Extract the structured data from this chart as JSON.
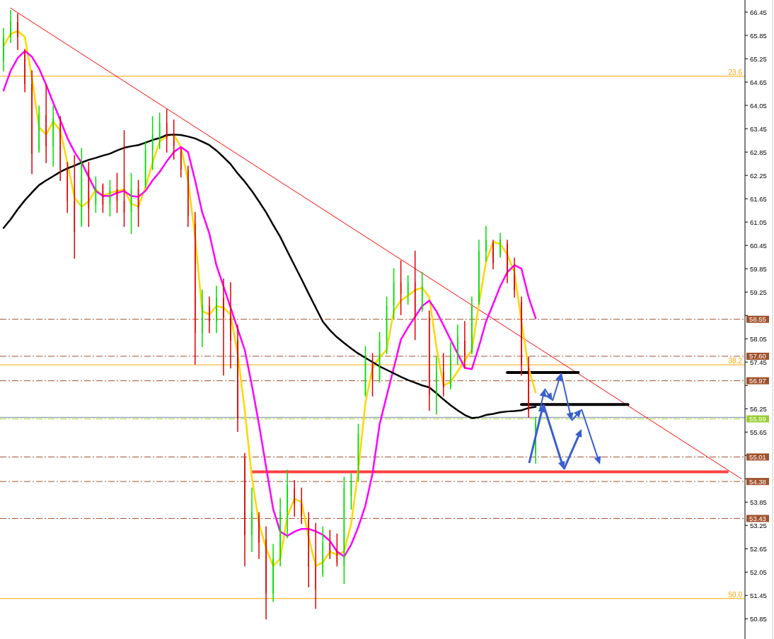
{
  "chart_data": {
    "type": "candlestick",
    "tick_labels": "y",
    "grid": false,
    "categories": [
      null,
      null,
      null,
      null,
      null,
      null,
      null,
      null,
      null,
      null,
      null,
      null,
      null,
      null,
      null,
      null,
      null,
      null,
      null,
      null,
      null,
      null,
      null,
      null,
      null,
      null,
      null,
      null,
      null,
      null,
      null,
      null,
      null,
      null,
      null,
      null,
      null,
      null,
      null,
      null,
      null,
      null,
      null,
      null,
      null,
      null,
      null,
      null,
      null,
      null,
      null,
      null,
      null,
      null,
      null,
      null,
      null,
      null,
      null,
      null,
      null,
      null,
      null,
      null,
      null,
      null,
      null,
      null,
      null,
      null,
      null,
      null,
      null,
      null,
      null,
      null,
      null,
      null,
      null,
      null,
      null,
      null,
      null,
      null,
      null,
      null,
      null,
      null,
      null,
      null,
      null,
      null,
      null,
      null,
      null,
      null,
      null,
      null,
      null,
      null,
      null,
      null,
      null,
      null,
      null
    ],
    "ylim": [
      50.33,
      66.76
    ],
    "yticks": [
      66.45,
      65.85,
      65.25,
      64.65,
      64.05,
      63.45,
      62.85,
      62.25,
      61.65,
      61.05,
      60.45,
      59.85,
      59.25,
      {
        "value": 58.65,
        "label": null
      },
      58.05,
      57.45,
      {
        "value": 56.85,
        "label": null
      },
      56.25,
      55.65,
      {
        "value": 55.05,
        "label": null
      },
      {
        "value": 54.45,
        "label": null
      },
      53.85,
      53.25,
      52.65,
      52.05,
      51.45,
      50.85
    ],
    "annotations": [
      {
        "text": "23.6",
        "y": 64.8
      },
      {
        "text": "38.2",
        "y": 57.38
      },
      {
        "text": "50.0",
        "y": 51.37
      }
    ],
    "ohlc": [
      [
        65.2,
        66.03,
        64.94,
        65.8
      ],
      [
        65.8,
        66.49,
        65.67,
        66.2
      ],
      [
        66.2,
        66.4,
        65.49,
        65.8
      ],
      [
        65.4,
        65.49,
        64.4,
        64.6
      ],
      [
        64.6,
        64.94,
        62.3,
        62.8
      ],
      [
        62.9,
        64.03,
        62.85,
        63.8
      ],
      [
        63.8,
        64.58,
        62.58,
        63.0
      ],
      [
        63.0,
        64.03,
        62.49,
        63.7
      ],
      [
        63.6,
        63.76,
        62.12,
        62.4
      ],
      [
        62.4,
        62.58,
        61.3,
        61.6
      ],
      [
        61.6,
        62.76,
        60.12,
        60.8
      ],
      [
        61.0,
        62.94,
        60.94,
        62.6
      ],
      [
        62.4,
        62.58,
        60.94,
        61.4
      ],
      [
        61.5,
        62.21,
        61.3,
        62.0
      ],
      [
        62.0,
        62.03,
        61.3,
        61.5
      ],
      [
        61.5,
        62.12,
        61.21,
        61.9
      ],
      [
        61.9,
        62.3,
        61.3,
        61.6
      ],
      [
        61.6,
        63.4,
        60.94,
        61.3
      ],
      [
        61.3,
        62.3,
        60.76,
        61.9
      ],
      [
        61.9,
        62.12,
        60.94,
        61.4
      ],
      [
        62.0,
        63.12,
        61.94,
        62.9
      ],
      [
        62.9,
        63.76,
        62.4,
        63.3
      ],
      [
        63.2,
        63.85,
        62.94,
        63.6
      ],
      [
        63.6,
        63.94,
        62.85,
        63.2
      ],
      [
        63.2,
        63.67,
        62.67,
        63.0
      ],
      [
        62.9,
        62.94,
        62.21,
        62.4
      ],
      [
        62.4,
        62.49,
        60.94,
        61.2
      ],
      [
        61.0,
        61.3,
        57.4,
        58.2
      ],
      [
        58.2,
        59.3,
        57.85,
        58.9
      ],
      [
        58.9,
        59.12,
        58.21,
        58.5
      ],
      [
        58.5,
        59.4,
        58.21,
        59.1
      ],
      [
        59.1,
        59.58,
        57.12,
        58.6
      ],
      [
        58.6,
        59.49,
        57.3,
        58.0
      ],
      [
        58.0,
        58.4,
        55.67,
        56.0
      ],
      [
        55.0,
        55.1,
        52.21,
        53.0
      ],
      [
        53.0,
        54.21,
        52.58,
        53.6
      ],
      [
        53.5,
        53.58,
        52.4,
        52.8
      ],
      [
        52.9,
        53.21,
        50.85,
        51.5
      ],
      [
        51.5,
        52.76,
        51.3,
        52.4
      ],
      [
        52.4,
        53.94,
        52.21,
        53.6
      ],
      [
        53.6,
        54.67,
        52.94,
        54.3
      ],
      [
        54.2,
        54.4,
        53.49,
        53.8
      ],
      [
        53.8,
        54.21,
        53.3,
        53.5
      ],
      [
        53.4,
        53.58,
        51.67,
        52.2
      ],
      [
        52.2,
        53.3,
        51.12,
        51.6
      ],
      [
        52.0,
        53.21,
        51.94,
        52.8
      ],
      [
        52.8,
        53.12,
        52.4,
        52.6
      ],
      [
        52.6,
        53.03,
        52.21,
        52.3
      ],
      [
        52.2,
        54.49,
        51.76,
        54.2
      ],
      [
        54.0,
        54.58,
        53.67,
        54.4
      ],
      [
        54.8,
        55.85,
        54.4,
        55.6
      ],
      [
        56.6,
        57.85,
        56.58,
        57.5
      ],
      [
        57.4,
        57.67,
        56.58,
        57.0
      ],
      [
        57.0,
        58.21,
        56.94,
        58.0
      ],
      [
        58.0,
        59.12,
        57.67,
        58.9
      ],
      [
        58.9,
        59.85,
        58.58,
        59.5
      ],
      [
        59.5,
        60.05,
        58.67,
        59.2
      ],
      [
        59.2,
        59.67,
        58.94,
        59.5
      ],
      [
        59.5,
        60.3,
        58.03,
        58.6
      ],
      [
        58.8,
        59.76,
        58.76,
        59.4
      ],
      [
        58.6,
        58.76,
        56.21,
        56.6
      ],
      [
        56.6,
        57.58,
        56.12,
        57.2
      ],
      [
        57.2,
        57.67,
        56.58,
        56.8
      ],
      [
        56.8,
        57.94,
        56.76,
        57.6
      ],
      [
        57.6,
        58.4,
        57.4,
        58.1
      ],
      [
        58.0,
        58.49,
        57.3,
        57.6
      ],
      [
        57.7,
        59.12,
        57.67,
        58.9
      ],
      [
        59.0,
        60.58,
        58.94,
        60.3
      ],
      [
        60.3,
        60.94,
        60.05,
        60.6
      ],
      [
        60.5,
        60.58,
        59.85,
        60.0
      ],
      [
        60.2,
        60.76,
        60.15,
        60.6
      ],
      [
        60.5,
        60.58,
        59.49,
        59.7
      ],
      [
        59.7,
        60.12,
        59.12,
        59.3
      ],
      [
        59.0,
        59.12,
        57.12,
        57.4
      ],
      [
        57.3,
        57.58,
        56.03,
        56.2
      ],
      [
        55.1,
        56.03,
        54.85,
        55.9
      ],
      null,
      null,
      null,
      null,
      null,
      null,
      null,
      null,
      null,
      null,
      null,
      null,
      null,
      null,
      null,
      null,
      null,
      null,
      null,
      null,
      null,
      null,
      null,
      null,
      null,
      null,
      null,
      null,
      null
    ],
    "series": [
      {
        "type": "line",
        "color": "#ffd700",
        "values": [
          65.58,
          65.89,
          65.96,
          65.81,
          64.76,
          63.49,
          63.3,
          63.63,
          63.4,
          62.58,
          61.67,
          61.45,
          61.58,
          61.89,
          61.72,
          61.8,
          61.85,
          61.89,
          61.52,
          61.45,
          61.94,
          62.58,
          63.12,
          63.27,
          63.3,
          62.98,
          62.12,
          60.67,
          58.76,
          58.67,
          58.89,
          58.85,
          58.67,
          57.67,
          56.21,
          54.49,
          53.3,
          52.67,
          52.21,
          52.4,
          53.49,
          53.94,
          53.85,
          52.94,
          52.21,
          52.3,
          52.58,
          52.49,
          52.58,
          53.3,
          54.67,
          56.4,
          57.3,
          57.58,
          57.76,
          58.76,
          59.03,
          59.16,
          59.3,
          59.36,
          59.12,
          57.85,
          56.85,
          56.94,
          57.21,
          57.49,
          57.76,
          58.94,
          60.03,
          60.54,
          60.49,
          60.21,
          59.76,
          58.49,
          57.3,
          56.67,
          null,
          null,
          null,
          null,
          null,
          null,
          null,
          null,
          null,
          null,
          null,
          null,
          null,
          null,
          null,
          null,
          null,
          null,
          null,
          null,
          null,
          null,
          null,
          null,
          null,
          null,
          null,
          null,
          null
        ]
      },
      {
        "type": "line",
        "color": "#ff00ff",
        "values": [
          64.43,
          64.94,
          65.27,
          65.45,
          65.3,
          65.0,
          64.58,
          64.12,
          63.67,
          63.21,
          62.85,
          62.58,
          62.21,
          61.85,
          61.72,
          61.72,
          61.8,
          61.85,
          61.72,
          61.7,
          61.85,
          62.12,
          62.34,
          62.61,
          62.85,
          62.98,
          62.85,
          62.12,
          61.3,
          60.76,
          59.94,
          59.4,
          58.85,
          58.3,
          57.76,
          56.85,
          55.85,
          54.76,
          53.67,
          53.09,
          52.98,
          53.09,
          53.16,
          53.16,
          53.1,
          53.01,
          52.85,
          52.58,
          52.45,
          52.76,
          53.21,
          53.76,
          54.58,
          55.85,
          56.58,
          57.3,
          58.03,
          58.34,
          58.61,
          58.89,
          59.03,
          58.76,
          58.4,
          58.03,
          57.67,
          57.3,
          57.27,
          57.85,
          58.49,
          58.94,
          59.4,
          59.76,
          59.94,
          59.85,
          59.12,
          58.58,
          null,
          null,
          null,
          null,
          null,
          null,
          null,
          null,
          null,
          null,
          null,
          null,
          null,
          null,
          null,
          null,
          null,
          null,
          null,
          null,
          null,
          null,
          null,
          null,
          null,
          null,
          null,
          null,
          null
        ]
      },
      {
        "type": "line",
        "color": "#000000",
        "values": [
          60.9,
          61.12,
          61.38,
          61.61,
          61.81,
          62.0,
          62.12,
          62.23,
          62.34,
          62.43,
          62.5,
          62.58,
          62.65,
          62.7,
          62.76,
          62.81,
          62.89,
          62.96,
          63.0,
          63.03,
          63.09,
          63.16,
          63.21,
          63.29,
          63.3,
          63.29,
          63.25,
          63.2,
          63.12,
          63.03,
          62.89,
          62.72,
          62.54,
          62.3,
          62.09,
          61.85,
          61.58,
          61.3,
          60.98,
          60.67,
          60.3,
          59.94,
          59.58,
          59.21,
          58.85,
          58.49,
          58.27,
          58.09,
          57.94,
          57.8,
          57.67,
          57.56,
          57.45,
          57.34,
          57.25,
          57.16,
          57.07,
          56.99,
          56.92,
          56.85,
          56.8,
          56.65,
          56.49,
          56.34,
          56.21,
          56.09,
          56.01,
          56.03,
          56.09,
          56.12,
          56.16,
          56.18,
          56.19,
          56.21,
          56.27,
          56.3,
          null,
          null,
          null,
          null,
          null,
          null,
          null,
          null,
          null,
          null,
          null,
          null,
          null,
          null,
          null,
          null,
          null,
          null,
          null,
          null,
          null,
          null,
          null,
          null,
          null,
          null,
          null,
          null,
          null
        ]
      },
      {
        "type": "line",
        "color": "#ff0000",
        "values": [
          null,
          66.55,
          null,
          null,
          null,
          null,
          null,
          null,
          null,
          null,
          null,
          null,
          null,
          null,
          null,
          null,
          null,
          null,
          null,
          null,
          null,
          null,
          null,
          null,
          null,
          null,
          null,
          null,
          null,
          null,
          null,
          null,
          null,
          null,
          null,
          null,
          null,
          null,
          null,
          null,
          null,
          null,
          null,
          null,
          null,
          null,
          null,
          null,
          null,
          null,
          null,
          null,
          null,
          null,
          null,
          null,
          null,
          null,
          null,
          null,
          null,
          null,
          null,
          null,
          null,
          null,
          null,
          null,
          null,
          null,
          null,
          null,
          null,
          null,
          null,
          null,
          null,
          null,
          null,
          null,
          null,
          null,
          null,
          null,
          null,
          null,
          null,
          null,
          null,
          null,
          null,
          null,
          null,
          null,
          null,
          null,
          null,
          null,
          null,
          null,
          null,
          null,
          null,
          null,
          54.45
        ]
      },
      {
        "type": "line",
        "color": "#ff4040",
        "values": [
          null,
          null,
          null,
          null,
          null,
          null,
          null,
          null,
          null,
          null,
          null,
          null,
          null,
          null,
          null,
          null,
          null,
          null,
          null,
          null,
          null,
          null,
          null,
          null,
          null,
          null,
          null,
          null,
          null,
          null,
          null,
          null,
          null,
          null,
          null,
          54.63,
          null,
          null,
          null,
          null,
          null,
          null,
          null,
          null,
          null,
          null,
          null,
          null,
          null,
          null,
          null,
          null,
          null,
          null,
          null,
          null,
          null,
          null,
          null,
          null,
          null,
          null,
          null,
          null,
          null,
          null,
          null,
          null,
          null,
          null,
          null,
          null,
          null,
          null,
          null,
          null,
          null,
          null,
          null,
          null,
          null,
          null,
          null,
          null,
          null,
          null,
          null,
          null,
          null,
          null,
          null,
          null,
          null,
          null,
          null,
          null,
          null,
          null,
          null,
          null,
          null,
          null,
          54.63,
          null,
          null
        ]
      },
      {
        "type": "line",
        "color": "#000000",
        "values": [
          null,
          null,
          null,
          null,
          null,
          null,
          null,
          null,
          null,
          null,
          null,
          null,
          null,
          null,
          null,
          null,
          null,
          null,
          null,
          null,
          null,
          null,
          null,
          null,
          null,
          null,
          null,
          null,
          null,
          null,
          null,
          null,
          null,
          null,
          null,
          null,
          null,
          null,
          null,
          null,
          null,
          null,
          null,
          null,
          null,
          null,
          null,
          null,
          null,
          null,
          null,
          null,
          null,
          null,
          null,
          null,
          null,
          null,
          null,
          null,
          null,
          null,
          null,
          null,
          null,
          null,
          null,
          null,
          null,
          null,
          null,
          57.18,
          null,
          null,
          null,
          null,
          null,
          null,
          null,
          null,
          null,
          57.18,
          null,
          null,
          null,
          null,
          null,
          null,
          null,
          null,
          null,
          null,
          null,
          null,
          null,
          null,
          null,
          null,
          null,
          null,
          null,
          null,
          null,
          null,
          null
        ]
      },
      {
        "type": "line",
        "color": "#000000",
        "values": [
          null,
          null,
          null,
          null,
          null,
          null,
          null,
          null,
          null,
          null,
          null,
          null,
          null,
          null,
          null,
          null,
          null,
          null,
          null,
          null,
          null,
          null,
          null,
          null,
          null,
          null,
          null,
          null,
          null,
          null,
          null,
          null,
          null,
          null,
          null,
          null,
          null,
          null,
          null,
          null,
          null,
          null,
          null,
          null,
          null,
          null,
          null,
          null,
          null,
          null,
          null,
          null,
          null,
          null,
          null,
          null,
          null,
          null,
          null,
          null,
          null,
          null,
          null,
          null,
          null,
          null,
          null,
          null,
          null,
          null,
          null,
          null,
          null,
          56.36,
          null,
          null,
          null,
          null,
          null,
          null,
          null,
          null,
          null,
          null,
          null,
          null,
          null,
          null,
          56.36,
          null,
          null,
          null,
          null,
          null,
          null,
          null,
          null,
          null,
          null,
          null,
          null,
          null,
          null,
          null,
          null
        ]
      }
    ],
    "ref_lines": [
      {
        "axis": "y",
        "value": 64.8,
        "color": "#ffa500",
        "line_style": "solid"
      },
      {
        "axis": "y",
        "value": 57.38,
        "color": "#ffa500",
        "line_style": "solid"
      },
      {
        "axis": "y",
        "value": 51.37,
        "color": "#ffa500",
        "line_style": "solid"
      },
      {
        "axis": "y",
        "value": 58.55,
        "label": "58.55",
        "color": "#a0522d",
        "line_style": "dashed"
      },
      {
        "axis": "y",
        "value": 57.6,
        "label": "57.60",
        "color": "#a0522d",
        "line_style": "dashed"
      },
      {
        "axis": "y",
        "value": 56.97,
        "label": "56.97",
        "color": "#a0522d",
        "line_style": "dashed"
      },
      {
        "axis": "y",
        "value": 56.03,
        "label": null,
        "color": "#778899",
        "line_style": "solid"
      },
      {
        "axis": "y",
        "value": 55.99,
        "label": "55.99",
        "color": "#9acd32",
        "line_style": "dashed"
      },
      {
        "axis": "y",
        "value": 55.01,
        "label": "55.01",
        "color": "#a0522d",
        "line_style": "dashed"
      },
      {
        "axis": "y",
        "value": 54.38,
        "label": "54.38",
        "color": "#a0522d",
        "line_style": "dashed"
      },
      {
        "axis": "y",
        "value": 53.43,
        "label": "53.43",
        "color": "#a0522d",
        "line_style": "dashed"
      }
    ]
  }
}
